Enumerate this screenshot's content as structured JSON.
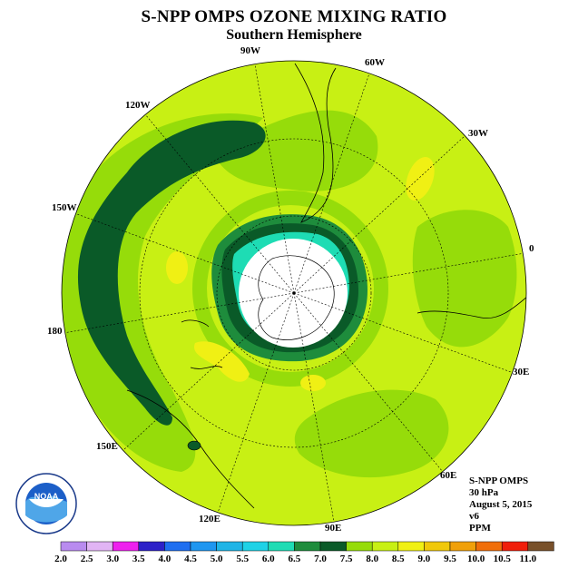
{
  "title": "S-NPP OMPS OZONE MIXING RATIO",
  "subtitle": "Southern Hemisphere",
  "longitude_labels": [
    "90W",
    "60W",
    "30W",
    "0",
    "30E",
    "60E",
    "90E",
    "120E",
    "150E",
    "180",
    "150W",
    "120W"
  ],
  "info": {
    "instrument": "S-NPP OMPS",
    "level": "30 hPa",
    "date": "August 5, 2015",
    "version": "v6",
    "units": "PPM"
  },
  "logo_text": "NOAA",
  "colorbar": {
    "ticks": [
      "2.0",
      "2.5",
      "3.0",
      "3.5",
      "4.0",
      "4.5",
      "5.0",
      "5.5",
      "6.0",
      "6.5",
      "7.0",
      "7.5",
      "8.0",
      "8.5",
      "9.0",
      "9.5",
      "10.0",
      "10.5",
      "11.0"
    ],
    "colors": [
      "#b98bef",
      "#e1b4f4",
      "#ee20ee",
      "#2c20c8",
      "#1e6ef0",
      "#1e96f0",
      "#1eb4e6",
      "#1ed2e6",
      "#1edcb4",
      "#1e8c3c",
      "#0a5a28",
      "#96dc0a",
      "#c8f014",
      "#f0f014",
      "#f0c80a",
      "#f0a00a",
      "#f06e0a",
      "#f01e0a",
      "#78502a"
    ]
  },
  "colors": {
    "background_field": "#c8f014",
    "band_75": "#96dc0a",
    "band_85": "#f0f014",
    "band_65": "#1e8c3c",
    "band_70": "#0a5a28",
    "band_60": "#1edcb4",
    "no_data": "#ffffff"
  }
}
